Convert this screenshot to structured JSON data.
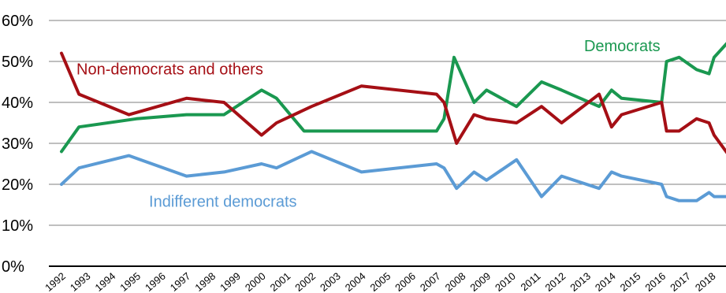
{
  "chart_data": {
    "type": "line",
    "ylim": [
      0,
      60
    ],
    "y_ticks": [
      "0%",
      "10%",
      "20%",
      "30%",
      "40%",
      "50%",
      "60%"
    ],
    "grid": true,
    "x_tick_labels": [
      "1992",
      "1993",
      "1994",
      "1995",
      "1996",
      "1997",
      "1998",
      "1999",
      "2000",
      "2001",
      "2002",
      "2003",
      "2004",
      "2005",
      "2006",
      "2007",
      "2008",
      "2009",
      "2010",
      "2011",
      "2012",
      "2013",
      "2014",
      "2015",
      "2016",
      "2017",
      "2018"
    ],
    "series": [
      {
        "name": "Democrats",
        "color": "#1a9850",
        "points": [
          [
            1992.0,
            28
          ],
          [
            1992.7,
            34
          ],
          [
            1995.0,
            36
          ],
          [
            1997.0,
            37
          ],
          [
            1998.5,
            37
          ],
          [
            2000.0,
            43
          ],
          [
            2000.6,
            41
          ],
          [
            2001.7,
            33
          ],
          [
            2007.0,
            33
          ],
          [
            2007.3,
            36
          ],
          [
            2007.7,
            51
          ],
          [
            2008.5,
            40
          ],
          [
            2009.0,
            43
          ],
          [
            2010.2,
            39
          ],
          [
            2011.2,
            45
          ],
          [
            2012.0,
            43
          ],
          [
            2013.5,
            39
          ],
          [
            2014.0,
            43
          ],
          [
            2014.4,
            41
          ],
          [
            2016.0,
            40
          ],
          [
            2016.2,
            50
          ],
          [
            2016.7,
            51
          ],
          [
            2017.4,
            48
          ],
          [
            2017.9,
            47
          ],
          [
            2018.1,
            51
          ],
          [
            2018.7,
            55
          ]
        ]
      },
      {
        "name": "Non-democrats and others",
        "color": "#a50f15",
        "points": [
          [
            1992.0,
            52
          ],
          [
            1992.7,
            42
          ],
          [
            1994.7,
            37
          ],
          [
            1997.0,
            41
          ],
          [
            1998.5,
            40
          ],
          [
            2000.0,
            32
          ],
          [
            2000.6,
            35
          ],
          [
            2002.0,
            39
          ],
          [
            2004.0,
            44
          ],
          [
            2007.0,
            42
          ],
          [
            2007.3,
            40
          ],
          [
            2007.8,
            30
          ],
          [
            2008.5,
            37
          ],
          [
            2009.0,
            36
          ],
          [
            2010.2,
            35
          ],
          [
            2011.2,
            39
          ],
          [
            2012.0,
            35
          ],
          [
            2013.5,
            42
          ],
          [
            2014.0,
            34
          ],
          [
            2014.4,
            37
          ],
          [
            2016.0,
            40
          ],
          [
            2016.2,
            33
          ],
          [
            2016.7,
            33
          ],
          [
            2017.4,
            36
          ],
          [
            2017.9,
            35
          ],
          [
            2018.1,
            32
          ],
          [
            2018.7,
            27
          ]
        ]
      },
      {
        "name": "Indifferent democrats",
        "color": "#5b9bd5",
        "points": [
          [
            1992.0,
            20
          ],
          [
            1992.7,
            24
          ],
          [
            1994.7,
            27
          ],
          [
            1997.0,
            22
          ],
          [
            1998.5,
            23
          ],
          [
            2000.0,
            25
          ],
          [
            2000.6,
            24
          ],
          [
            2002.0,
            28
          ],
          [
            2004.0,
            23
          ],
          [
            2007.0,
            25
          ],
          [
            2007.3,
            24
          ],
          [
            2007.8,
            19
          ],
          [
            2008.5,
            23
          ],
          [
            2009.0,
            21
          ],
          [
            2010.2,
            26
          ],
          [
            2011.2,
            17
          ],
          [
            2012.0,
            22
          ],
          [
            2013.5,
            19
          ],
          [
            2014.0,
            23
          ],
          [
            2014.4,
            22
          ],
          [
            2016.0,
            20
          ],
          [
            2016.2,
            17
          ],
          [
            2016.7,
            16
          ],
          [
            2017.4,
            16
          ],
          [
            2017.9,
            18
          ],
          [
            2018.1,
            17
          ],
          [
            2018.7,
            17
          ]
        ]
      }
    ]
  }
}
